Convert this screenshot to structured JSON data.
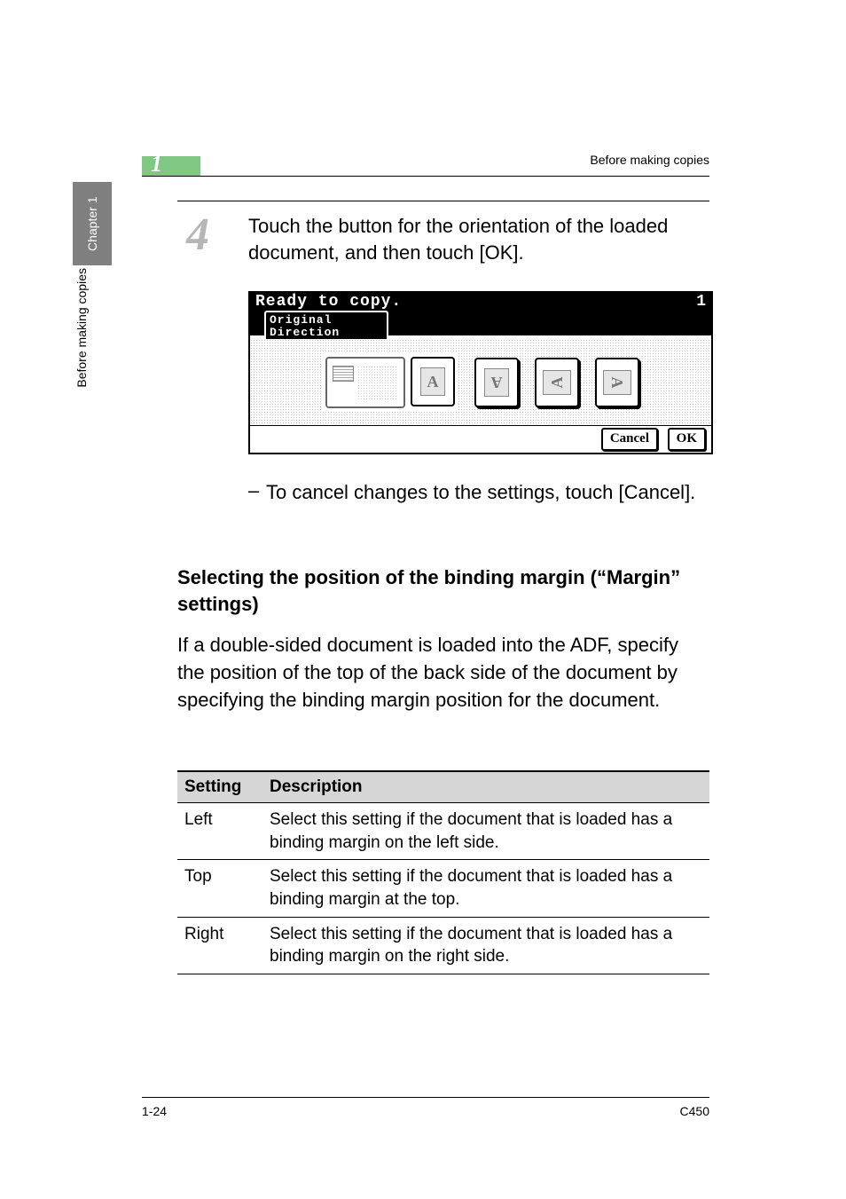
{
  "header": {
    "step_marker": "1",
    "running_head": "Before making copies"
  },
  "side": {
    "tab_label": "Chapter 1",
    "side_label": "Before making copies"
  },
  "step": {
    "number": "4",
    "text": "Touch the button for the orientation of the loaded document, and then touch [OK]."
  },
  "lcd": {
    "ready": "Ready to copy.",
    "count": "1",
    "tab_line1": "Original",
    "tab_line2": "Direction",
    "buttons": {
      "cancel": "Cancel",
      "ok": "OK"
    },
    "orient_letters": [
      "A",
      "A",
      "A",
      "A"
    ]
  },
  "bullet": {
    "dash": "–",
    "text": "To cancel changes to the settings, touch [Cancel]."
  },
  "subheading": "Selecting the position of the binding margin (“Margin” settings)",
  "paragraph": "If a double-sided document is loaded into the ADF, specify the position of the top of the back side of the document by specifying the binding margin position for the document.",
  "table": {
    "headers": [
      "Setting",
      "Description"
    ],
    "rows": [
      [
        "Left",
        "Select this setting if the document that is loaded has a binding margin on the left side."
      ],
      [
        "Top",
        "Select this setting if the document that is loaded has a binding margin at the top."
      ],
      [
        "Right",
        "Select this setting if the document that is loaded has a binding margin on the right side."
      ]
    ]
  },
  "footer": {
    "page": "1-24",
    "model": "C450"
  },
  "colors": {
    "green": "#81c784",
    "grey_tab": "#7f7f7f",
    "grey_num": "#b6b6b6",
    "th_bg": "#d6d6d6"
  }
}
